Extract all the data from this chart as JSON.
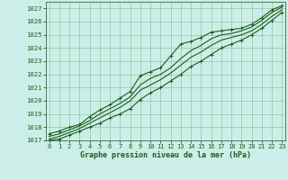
{
  "title": "Graphe pression niveau de la mer (hPa)",
  "background_color": "#cceee8",
  "grid_color": "#5a9a5a",
  "line_color": "#1a5e1a",
  "marker_color": "#1a5e1a",
  "ylim": [
    1017,
    1027.5
  ],
  "xlim": [
    -0.3,
    23.3
  ],
  "yticks": [
    1017,
    1018,
    1019,
    1020,
    1021,
    1022,
    1023,
    1024,
    1025,
    1026,
    1027
  ],
  "xticks": [
    0,
    1,
    2,
    3,
    4,
    5,
    6,
    7,
    8,
    9,
    10,
    11,
    12,
    13,
    14,
    15,
    16,
    17,
    18,
    19,
    20,
    21,
    22,
    23
  ],
  "series": [
    {
      "y": [
        1017.5,
        1017.7,
        1018.0,
        1018.2,
        1018.8,
        1019.3,
        1019.7,
        1020.2,
        1020.7,
        1021.9,
        1022.2,
        1022.5,
        1023.4,
        1024.3,
        1024.5,
        1024.8,
        1025.2,
        1025.3,
        1025.4,
        1025.5,
        1025.8,
        1026.3,
        1026.9,
        1027.2
      ],
      "marker": true
    },
    {
      "y": [
        1017.3,
        1017.5,
        1017.8,
        1018.1,
        1018.5,
        1019.0,
        1019.4,
        1019.8,
        1020.3,
        1021.2,
        1021.7,
        1022.0,
        1022.5,
        1023.2,
        1023.8,
        1024.2,
        1024.7,
        1025.0,
        1025.1,
        1025.3,
        1025.6,
        1026.1,
        1026.7,
        1027.1
      ],
      "marker": false
    },
    {
      "y": [
        1017.1,
        1017.3,
        1017.6,
        1017.9,
        1018.3,
        1018.7,
        1019.1,
        1019.5,
        1020.0,
        1020.8,
        1021.2,
        1021.6,
        1022.1,
        1022.7,
        1023.3,
        1023.7,
        1024.2,
        1024.6,
        1024.8,
        1025.0,
        1025.3,
        1025.8,
        1026.4,
        1026.9
      ],
      "marker": false
    },
    {
      "y": [
        1017.0,
        1017.1,
        1017.4,
        1017.7,
        1018.0,
        1018.3,
        1018.7,
        1019.0,
        1019.4,
        1020.1,
        1020.6,
        1021.0,
        1021.5,
        1022.0,
        1022.6,
        1023.0,
        1023.5,
        1024.0,
        1024.3,
        1024.6,
        1025.0,
        1025.5,
        1026.1,
        1026.7
      ],
      "marker": true
    }
  ]
}
